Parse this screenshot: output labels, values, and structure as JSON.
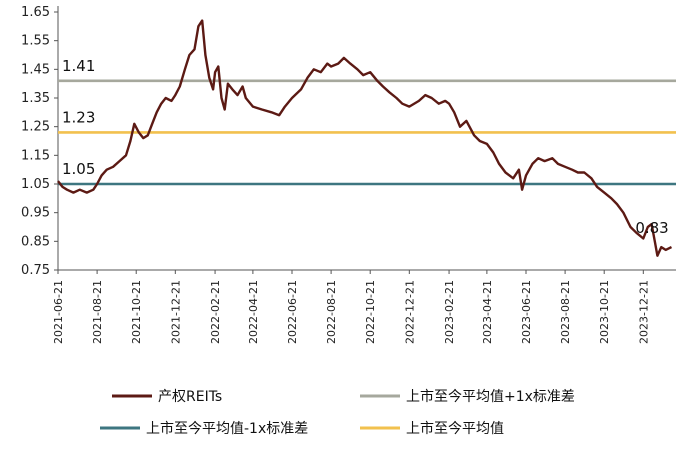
{
  "chart_data": {
    "type": "line",
    "title": "",
    "xlabel": "",
    "ylabel": "",
    "ylim": [
      0.75,
      1.65
    ],
    "yticks": [
      0.75,
      0.85,
      0.95,
      1.05,
      1.15,
      1.25,
      1.35,
      1.45,
      1.55,
      1.65
    ],
    "ytick_labels": [
      "0.75",
      "0.85",
      "0.95",
      "1.05",
      "1.15",
      "1.25",
      "1.35",
      "1.45",
      "1.55",
      "1.65"
    ],
    "xlim": [
      "2021-06-21",
      "2024-02-10"
    ],
    "xticks": [
      "2021-06-21",
      "2021-08-21",
      "2021-10-21",
      "2021-12-21",
      "2022-02-21",
      "2022-04-21",
      "2022-06-21",
      "2022-08-21",
      "2022-10-21",
      "2022-12-21",
      "2023-02-21",
      "2023-04-21",
      "2023-06-21",
      "2023-08-21",
      "2023-10-21",
      "2023-12-21"
    ],
    "legend_position": "bottom",
    "annotations": [
      {
        "text": "1.41",
        "x": "2021-06-21",
        "y": 1.41
      },
      {
        "text": "1.23",
        "x": "2021-06-21",
        "y": 1.23
      },
      {
        "text": "1.05",
        "x": "2021-06-21",
        "y": 1.05
      },
      {
        "text": "0.83",
        "x": "2024-01-15",
        "y": 0.83
      }
    ],
    "series": [
      {
        "name": "产权REITs",
        "color": "#5c1a14",
        "points": [
          [
            "2021-06-21",
            1.06
          ],
          [
            "2021-06-28",
            1.04
          ],
          [
            "2021-07-05",
            1.03
          ],
          [
            "2021-07-15",
            1.02
          ],
          [
            "2021-07-25",
            1.03
          ],
          [
            "2021-08-05",
            1.02
          ],
          [
            "2021-08-15",
            1.03
          ],
          [
            "2021-08-21",
            1.05
          ],
          [
            "2021-08-28",
            1.08
          ],
          [
            "2021-09-05",
            1.1
          ],
          [
            "2021-09-15",
            1.11
          ],
          [
            "2021-09-25",
            1.13
          ],
          [
            "2021-10-05",
            1.15
          ],
          [
            "2021-10-12",
            1.2
          ],
          [
            "2021-10-18",
            1.26
          ],
          [
            "2021-10-25",
            1.23
          ],
          [
            "2021-11-01",
            1.21
          ],
          [
            "2021-11-08",
            1.22
          ],
          [
            "2021-11-15",
            1.26
          ],
          [
            "2021-11-22",
            1.3
          ],
          [
            "2021-11-29",
            1.33
          ],
          [
            "2021-12-06",
            1.35
          ],
          [
            "2021-12-15",
            1.34
          ],
          [
            "2021-12-21",
            1.36
          ],
          [
            "2021-12-28",
            1.39
          ],
          [
            "2022-01-05",
            1.45
          ],
          [
            "2022-01-12",
            1.5
          ],
          [
            "2022-01-20",
            1.52
          ],
          [
            "2022-01-26",
            1.6
          ],
          [
            "2022-02-01",
            1.62
          ],
          [
            "2022-02-06",
            1.5
          ],
          [
            "2022-02-12",
            1.42
          ],
          [
            "2022-02-18",
            1.38
          ],
          [
            "2022-02-21",
            1.44
          ],
          [
            "2022-02-26",
            1.46
          ],
          [
            "2022-03-03",
            1.35
          ],
          [
            "2022-03-08",
            1.31
          ],
          [
            "2022-03-13",
            1.4
          ],
          [
            "2022-03-20",
            1.38
          ],
          [
            "2022-03-28",
            1.36
          ],
          [
            "2022-04-05",
            1.39
          ],
          [
            "2022-04-10",
            1.35
          ],
          [
            "2022-04-21",
            1.32
          ],
          [
            "2022-05-05",
            1.31
          ],
          [
            "2022-05-20",
            1.3
          ],
          [
            "2022-06-01",
            1.29
          ],
          [
            "2022-06-10",
            1.32
          ],
          [
            "2022-06-21",
            1.35
          ],
          [
            "2022-07-05",
            1.38
          ],
          [
            "2022-07-15",
            1.42
          ],
          [
            "2022-07-25",
            1.45
          ],
          [
            "2022-08-05",
            1.44
          ],
          [
            "2022-08-15",
            1.47
          ],
          [
            "2022-08-21",
            1.46
          ],
          [
            "2022-09-01",
            1.47
          ],
          [
            "2022-09-10",
            1.49
          ],
          [
            "2022-09-20",
            1.47
          ],
          [
            "2022-10-01",
            1.45
          ],
          [
            "2022-10-10",
            1.43
          ],
          [
            "2022-10-21",
            1.44
          ],
          [
            "2022-11-01",
            1.41
          ],
          [
            "2022-11-10",
            1.39
          ],
          [
            "2022-11-20",
            1.37
          ],
          [
            "2022-12-01",
            1.35
          ],
          [
            "2022-12-10",
            1.33
          ],
          [
            "2022-12-21",
            1.32
          ],
          [
            "2023-01-05",
            1.34
          ],
          [
            "2023-01-15",
            1.36
          ],
          [
            "2023-01-25",
            1.35
          ],
          [
            "2023-02-05",
            1.33
          ],
          [
            "2023-02-15",
            1.34
          ],
          [
            "2023-02-21",
            1.33
          ],
          [
            "2023-03-01",
            1.3
          ],
          [
            "2023-03-10",
            1.25
          ],
          [
            "2023-03-20",
            1.27
          ],
          [
            "2023-04-01",
            1.22
          ],
          [
            "2023-04-10",
            1.2
          ],
          [
            "2023-04-21",
            1.19
          ],
          [
            "2023-05-01",
            1.16
          ],
          [
            "2023-05-10",
            1.12
          ],
          [
            "2023-05-20",
            1.09
          ],
          [
            "2023-06-01",
            1.07
          ],
          [
            "2023-06-10",
            1.1
          ],
          [
            "2023-06-15",
            1.03
          ],
          [
            "2023-06-21",
            1.08
          ],
          [
            "2023-07-01",
            1.12
          ],
          [
            "2023-07-10",
            1.14
          ],
          [
            "2023-07-20",
            1.13
          ],
          [
            "2023-08-01",
            1.14
          ],
          [
            "2023-08-10",
            1.12
          ],
          [
            "2023-08-21",
            1.11
          ],
          [
            "2023-09-01",
            1.1
          ],
          [
            "2023-09-10",
            1.09
          ],
          [
            "2023-09-20",
            1.09
          ],
          [
            "2023-10-01",
            1.07
          ],
          [
            "2023-10-10",
            1.04
          ],
          [
            "2023-10-21",
            1.02
          ],
          [
            "2023-11-01",
            1.0
          ],
          [
            "2023-11-10",
            0.98
          ],
          [
            "2023-11-20",
            0.95
          ],
          [
            "2023-12-01",
            0.9
          ],
          [
            "2023-12-10",
            0.88
          ],
          [
            "2023-12-21",
            0.86
          ],
          [
            "2023-12-28",
            0.9
          ],
          [
            "2024-01-03",
            0.91
          ],
          [
            "2024-01-08",
            0.85
          ],
          [
            "2024-01-12",
            0.8
          ],
          [
            "2024-01-18",
            0.83
          ],
          [
            "2024-01-25",
            0.82
          ],
          [
            "2024-02-03",
            0.83
          ]
        ]
      },
      {
        "name": "上市至今平均值+1x标准差",
        "color": "#a6a89d",
        "constant": 1.41
      },
      {
        "name": "上市至今平均值-1x标准差",
        "color": "#3d7680",
        "constant": 1.05
      },
      {
        "name": "上市至今平均值",
        "color": "#f2c14e",
        "constant": 1.23
      }
    ]
  }
}
